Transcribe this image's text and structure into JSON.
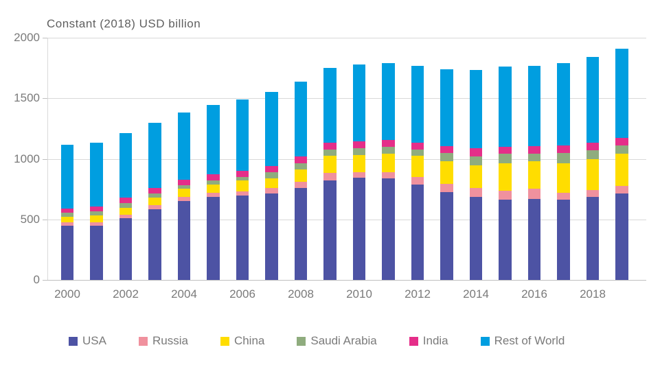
{
  "chart_data": {
    "type": "bar",
    "stacked": true,
    "title": "Constant (2018) USD billion",
    "xlabel": "",
    "ylabel": "Constant (2018) USD billion",
    "ylim": [
      0,
      2000
    ],
    "y_ticks": [
      0,
      500,
      1000,
      1500,
      2000
    ],
    "grid": true,
    "legend_position": "bottom",
    "x_tick_step_note": "x axis labelled every 2 years",
    "categories": [
      2000,
      2001,
      2002,
      2003,
      2004,
      2005,
      2006,
      2007,
      2008,
      2009,
      2010,
      2011,
      2012,
      2013,
      2014,
      2015,
      2016,
      2017,
      2018,
      2019
    ],
    "x_tick_labels": [
      "2000",
      "2002",
      "2004",
      "2006",
      "2008",
      "2010",
      "2012",
      "2014",
      "2016",
      "2018"
    ],
    "series": [
      {
        "name": "USA",
        "color": "#4d53a4",
        "values": [
          449,
          447,
          509,
          585,
          652,
          688,
          698,
          713,
          762,
          824,
          843,
          841,
          790,
          727,
          684,
          666,
          669,
          663,
          684,
          714
        ]
      },
      {
        "name": "Russia",
        "color": "#f0919e",
        "values": [
          30,
          32,
          32,
          32,
          36,
          33,
          34,
          45,
          49,
          59,
          47,
          49,
          63,
          69,
          74,
          74,
          86,
          58,
          61,
          63
        ]
      },
      {
        "name": "China",
        "color": "#ffdd00",
        "values": [
          46,
          55,
          57,
          62,
          67,
          68,
          89,
          80,
          104,
          145,
          142,
          151,
          175,
          185,
          189,
          222,
          226,
          245,
          251,
          264
        ]
      },
      {
        "name": "Saudi Arabia",
        "color": "#8fac7e",
        "values": [
          32,
          33,
          38,
          35,
          28,
          32,
          32,
          52,
          51,
          51,
          58,
          57,
          51,
          66,
          75,
          79,
          60,
          81,
          76,
          68
        ]
      },
      {
        "name": "India",
        "color": "#e52e89",
        "values": [
          35,
          38,
          43,
          46,
          47,
          51,
          49,
          53,
          53,
          53,
          57,
          57,
          57,
          57,
          68,
          57,
          63,
          62,
          64,
          64
        ]
      },
      {
        "name": "Rest of World",
        "color": "#009ee0",
        "values": [
          526,
          530,
          532,
          538,
          553,
          571,
          588,
          608,
          619,
          617,
          632,
          634,
          634,
          637,
          646,
          662,
          666,
          683,
          704,
          736
        ]
      }
    ],
    "totals": [
      1118,
      1135,
      1211,
      1298,
      1383,
      1443,
      1490,
      1551,
      1638,
      1749,
      1779,
      1789,
      1770,
      1741,
      1736,
      1760,
      1770,
      1792,
      1840,
      1909
    ],
    "colors": {
      "grid": "#d9d9d9",
      "axis": "#bfbfbf",
      "text": "#7a7a7a",
      "title_text": "#5f5f5f",
      "background": "#ffffff"
    }
  }
}
